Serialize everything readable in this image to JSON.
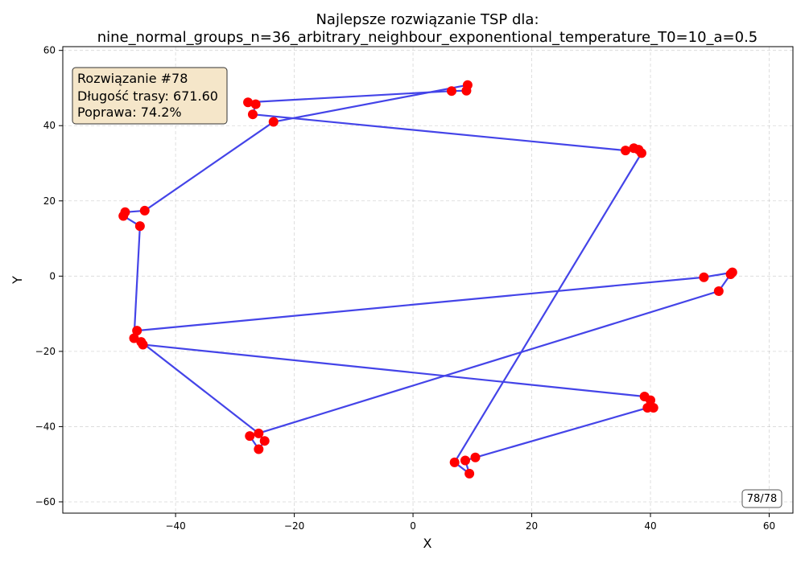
{
  "chart_data": {
    "type": "scatter",
    "title_line1": "Najlepsze rozwiązanie TSP dla:",
    "title_line2": "nine_normal_groups_n=36_arbitrary_neighbour_exponentional_temperature_T0=10_a=0.5",
    "xlabel": "X",
    "ylabel": "Y",
    "xlim": [
      -59,
      64
    ],
    "ylim": [
      -63,
      61
    ],
    "xticks": [
      -40,
      -20,
      0,
      20,
      40,
      60
    ],
    "yticks": [
      -60,
      -40,
      -20,
      0,
      20,
      40,
      60
    ],
    "grid": true,
    "route_color": "#4444e8",
    "point_color": "#ff0000",
    "route": [
      [
        7,
        -49.5
      ],
      [
        9.5,
        -52.5
      ],
      [
        8.8,
        -49
      ],
      [
        10.5,
        -48.2
      ],
      [
        39.5,
        -35
      ],
      [
        40.5,
        -35
      ],
      [
        40,
        -33
      ],
      [
        39,
        -32
      ],
      [
        -45.5,
        -18.2
      ],
      [
        -45.8,
        -17.5
      ],
      [
        -26,
        -41.8
      ],
      [
        -25,
        -43.8
      ],
      [
        -26,
        -46
      ],
      [
        -27.5,
        -42.5
      ],
      [
        51.5,
        -4
      ],
      [
        53.5,
        0.5
      ],
      [
        53.8,
        1
      ],
      [
        49,
        -0.3
      ],
      [
        -46.5,
        -14.5
      ],
      [
        -47,
        -16.5
      ],
      [
        -46,
        13.3
      ],
      [
        -48.8,
        16
      ],
      [
        -48.5,
        17
      ],
      [
        -45.2,
        17.4
      ],
      [
        -23.5,
        41
      ],
      [
        9.2,
        50.8
      ],
      [
        9,
        49.3
      ],
      [
        6.5,
        49.2
      ],
      [
        -27.8,
        46.2
      ],
      [
        -26.5,
        45.7
      ],
      [
        -27,
        43
      ],
      [
        35.8,
        33.4
      ],
      [
        37.2,
        34
      ],
      [
        38,
        33.6
      ],
      [
        38.5,
        32.7
      ],
      [
        7,
        -49.5
      ]
    ],
    "info_box": {
      "line1": "Rozwiązanie #78",
      "line2": "Długość trasy: 671.60",
      "line3": "Poprawa: 74.2%"
    },
    "frame_counter": "78/78"
  }
}
